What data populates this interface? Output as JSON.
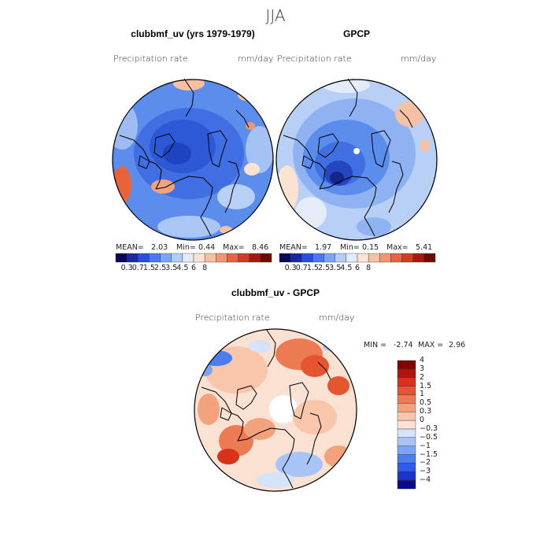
{
  "season": "JJA",
  "panels": [
    {
      "title": "clubbmf_uv (yrs 1979-1979)",
      "variable": "Precipitation rate",
      "units": "mm/day",
      "stats": {
        "mean_label": "MEAN=",
        "mean": "2.03",
        "min_label": "Min=",
        "min": "0.44",
        "max_label": "Max=",
        "max": "8.46"
      }
    },
    {
      "title": "GPCP",
      "variable": "Precipitation rate",
      "units": "mm/day",
      "stats": {
        "mean_label": "MEAN=",
        "mean": "1.97",
        "min_label": "Min=",
        "min": "0.15",
        "max_label": "Max=",
        "max": "5.41"
      }
    },
    {
      "title": "clubbmf_uv - GPCP",
      "variable": "Precipitation rate",
      "units": "mm/day",
      "stats": {
        "min_label": "MIN =",
        "min": "-2.74",
        "max_label": "MAX =",
        "max": "2.96"
      }
    }
  ],
  "colorbar_abs": {
    "colors": [
      "#08085a",
      "#1a2a9c",
      "#2a4fd6",
      "#4a7be8",
      "#7aa6f0",
      "#b4cdf5",
      "#e4ecfa",
      "#fbe3d2",
      "#f6c0a2",
      "#f09670",
      "#e8633e",
      "#d63a20",
      "#a8180c",
      "#6e0a04"
    ],
    "labels": [
      "0.3",
      "0.7",
      "1.5",
      "2.5",
      "3.5",
      "4.5",
      "6",
      "8"
    ]
  },
  "colorbar_diff": {
    "colors": [
      "#0a0a8c",
      "#1a35c8",
      "#2e5ae6",
      "#4a7ef0",
      "#7aa4f4",
      "#a8c4f6",
      "#d4e2fa",
      "#fbe1d1",
      "#f7c6ab",
      "#f2a27c",
      "#ec7a52",
      "#e55530",
      "#d83218",
      "#b0140a",
      "#800404"
    ],
    "labels": [
      "-4",
      "-3",
      "-2",
      "-1.5",
      "-1",
      "-0.5",
      "-0.3",
      "0",
      "0.3",
      "0.5",
      "1",
      "1.5",
      "2",
      "3",
      "4"
    ]
  }
}
